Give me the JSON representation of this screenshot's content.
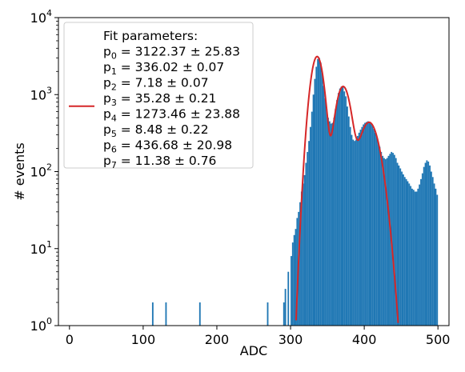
{
  "chart_data": {
    "type": "bar",
    "title": "",
    "xlabel": "ADC",
    "ylabel": "# events",
    "xlim": [
      -15,
      515
    ],
    "ylim": [
      1,
      10000
    ],
    "yscale": "log",
    "grid": false,
    "colors": {
      "histogram": "#1f77b4",
      "fit": "#d62728"
    },
    "x_ticks": [
      "0",
      "100",
      "200",
      "300",
      "400",
      "500"
    ],
    "y_ticks": [
      {
        "base": "10",
        "exp": "0"
      },
      {
        "base": "10",
        "exp": "1"
      },
      {
        "base": "10",
        "exp": "2"
      },
      {
        "base": "10",
        "exp": "3"
      },
      {
        "base": "10",
        "exp": "4"
      }
    ],
    "legend": {
      "placement": "upper-left",
      "title": "Fit parameters:",
      "entries": [
        {
          "sym": "p",
          "sub": "0",
          "text": " = 3122.37 ± 25.83"
        },
        {
          "sym": "p",
          "sub": "1",
          "text": " = 336.02 ± 0.07"
        },
        {
          "sym": "p",
          "sub": "2",
          "text": " = 7.18 ± 0.07"
        },
        {
          "sym": "p",
          "sub": "3",
          "text": " = 35.28 ± 0.21"
        },
        {
          "sym": "p",
          "sub": "4",
          "text": " = 1273.46 ± 23.88"
        },
        {
          "sym": "p",
          "sub": "5",
          "text": " = 8.48 ± 0.22"
        },
        {
          "sym": "p",
          "sub": "6",
          "text": " = 436.68 ± 20.98"
        },
        {
          "sym": "p",
          "sub": "7",
          "text": " = 11.38 ± 0.76"
        }
      ]
    },
    "fit": {
      "model": "sum of three gaussians",
      "params": [
        3122.37,
        336.02,
        7.18,
        35.28,
        1273.46,
        8.48,
        436.68,
        11.38
      ]
    },
    "histogram": {
      "bin_width": 2,
      "bins": [
        [
          112,
          2
        ],
        [
          130,
          2
        ],
        [
          176,
          2
        ],
        [
          268,
          2
        ],
        [
          290,
          2
        ],
        [
          292,
          3
        ],
        [
          296,
          5
        ],
        [
          300,
          8
        ],
        [
          302,
          12
        ],
        [
          304,
          15
        ],
        [
          306,
          18
        ],
        [
          308,
          25
        ],
        [
          310,
          30
        ],
        [
          312,
          40
        ],
        [
          314,
          55
        ],
        [
          316,
          70
        ],
        [
          318,
          90
        ],
        [
          320,
          130
        ],
        [
          322,
          180
        ],
        [
          324,
          250
        ],
        [
          326,
          380
        ],
        [
          328,
          600
        ],
        [
          330,
          1000
        ],
        [
          332,
          1600
        ],
        [
          334,
          2300
        ],
        [
          336,
          2900
        ],
        [
          338,
          3000
        ],
        [
          340,
          2600
        ],
        [
          342,
          1900
        ],
        [
          344,
          1300
        ],
        [
          346,
          900
        ],
        [
          348,
          650
        ],
        [
          350,
          500
        ],
        [
          352,
          450
        ],
        [
          354,
          420
        ],
        [
          356,
          430
        ],
        [
          358,
          500
        ],
        [
          360,
          650
        ],
        [
          362,
          850
        ],
        [
          364,
          1050
        ],
        [
          366,
          1200
        ],
        [
          368,
          1270
        ],
        [
          370,
          1250
        ],
        [
          372,
          1100
        ],
        [
          374,
          950
        ],
        [
          376,
          700
        ],
        [
          378,
          520
        ],
        [
          380,
          380
        ],
        [
          382,
          300
        ],
        [
          384,
          260
        ],
        [
          386,
          250
        ],
        [
          388,
          260
        ],
        [
          390,
          290
        ],
        [
          392,
          320
        ],
        [
          394,
          350
        ],
        [
          396,
          380
        ],
        [
          398,
          410
        ],
        [
          400,
          430
        ],
        [
          402,
          440
        ],
        [
          404,
          450
        ],
        [
          406,
          445
        ],
        [
          408,
          430
        ],
        [
          410,
          400
        ],
        [
          412,
          360
        ],
        [
          414,
          320
        ],
        [
          416,
          280
        ],
        [
          418,
          240
        ],
        [
          420,
          210
        ],
        [
          422,
          180
        ],
        [
          424,
          160
        ],
        [
          426,
          150
        ],
        [
          428,
          145
        ],
        [
          430,
          150
        ],
        [
          432,
          160
        ],
        [
          434,
          170
        ],
        [
          436,
          180
        ],
        [
          438,
          175
        ],
        [
          440,
          165
        ],
        [
          442,
          150
        ],
        [
          444,
          130
        ],
        [
          446,
          120
        ],
        [
          448,
          110
        ],
        [
          450,
          100
        ],
        [
          452,
          92
        ],
        [
          454,
          85
        ],
        [
          456,
          80
        ],
        [
          458,
          75
        ],
        [
          460,
          70
        ],
        [
          462,
          65
        ],
        [
          464,
          60
        ],
        [
          466,
          58
        ],
        [
          468,
          55
        ],
        [
          470,
          55
        ],
        [
          472,
          60
        ],
        [
          474,
          68
        ],
        [
          476,
          80
        ],
        [
          478,
          95
        ],
        [
          480,
          115
        ],
        [
          482,
          130
        ],
        [
          484,
          140
        ],
        [
          486,
          135
        ],
        [
          488,
          120
        ],
        [
          490,
          100
        ],
        [
          492,
          85
        ],
        [
          494,
          70
        ],
        [
          496,
          60
        ],
        [
          498,
          50
        ]
      ]
    }
  }
}
